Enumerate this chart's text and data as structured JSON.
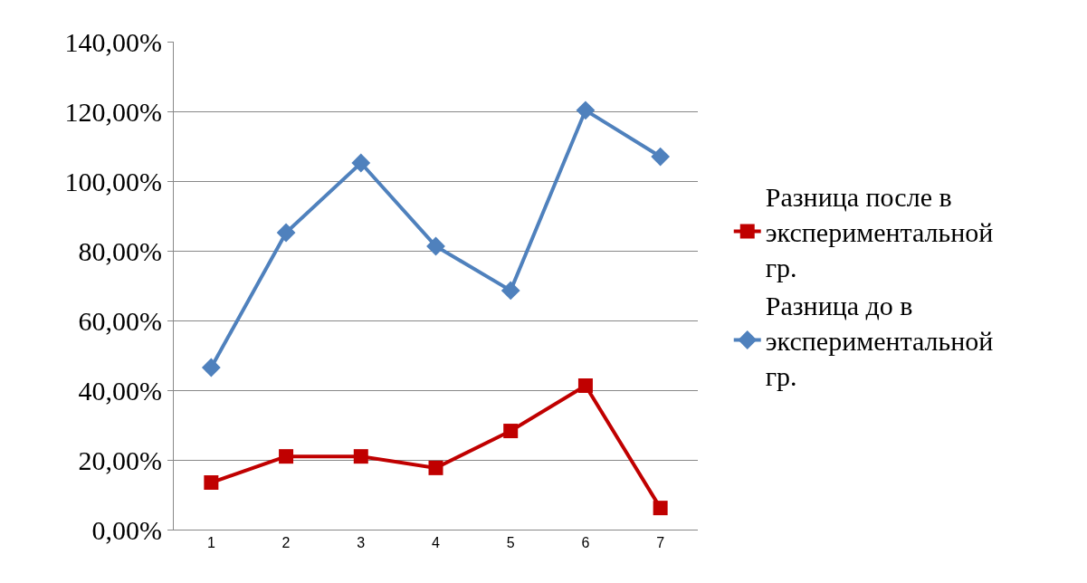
{
  "chart_data": {
    "type": "line",
    "categories": [
      "1",
      "2",
      "3",
      "4",
      "5",
      "6",
      "7"
    ],
    "series": [
      {
        "name": "Разница после в экспериментальной гр.",
        "color": "#c00000",
        "marker": "square",
        "values": [
          13.5,
          21.0,
          21.0,
          17.7,
          28.3,
          41.3,
          6.2
        ]
      },
      {
        "name": "Разница до в экспериментальной гр.",
        "color": "#4f81bd",
        "marker": "diamond",
        "values": [
          46.5,
          85.2,
          105.2,
          81.3,
          68.6,
          120.3,
          107.0
        ]
      }
    ],
    "ylim": [
      0,
      140
    ],
    "yticks": [
      {
        "value": 0,
        "label": "0,00%"
      },
      {
        "value": 20,
        "label": "20,00%"
      },
      {
        "value": 40,
        "label": "40,00%"
      },
      {
        "value": 60,
        "label": "60,00%"
      },
      {
        "value": 80,
        "label": "80,00%"
      },
      {
        "value": 100,
        "label": "100,00%"
      },
      {
        "value": 120,
        "label": "120,00%"
      },
      {
        "value": 140,
        "label": "140,00%"
      }
    ],
    "grid": "y",
    "legend": "right",
    "line_style": "solid"
  }
}
